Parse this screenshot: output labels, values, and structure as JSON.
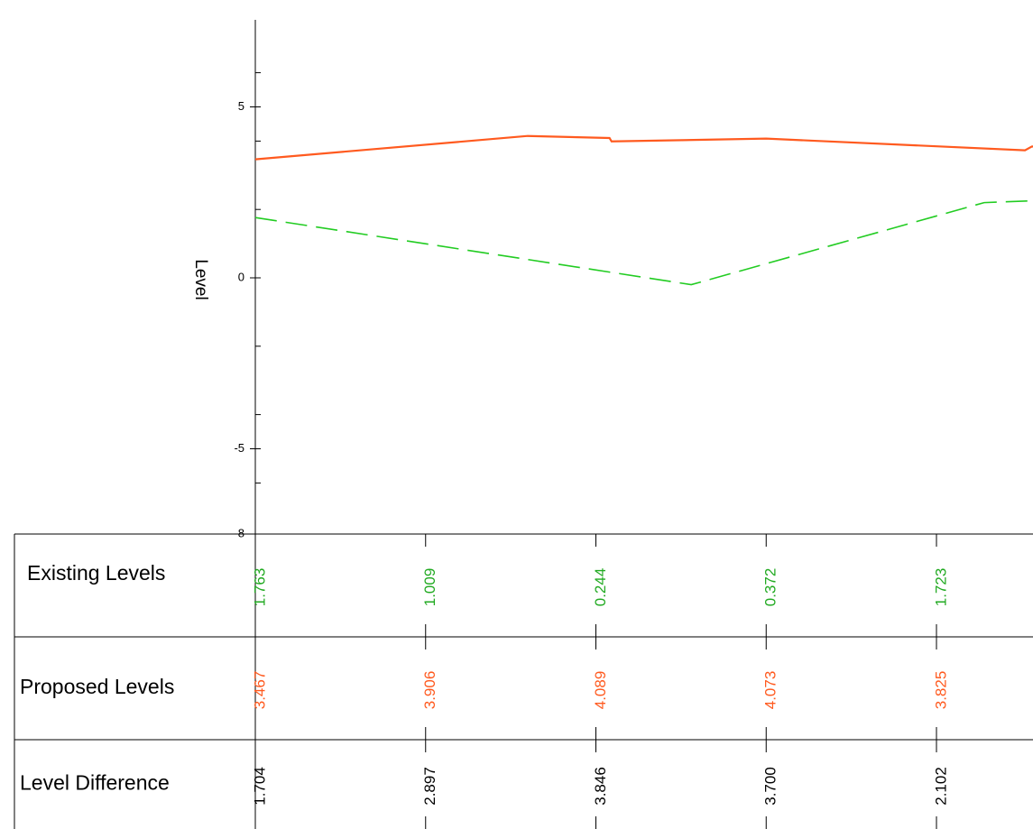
{
  "chart_data": {
    "type": "line",
    "ylabel": "Level",
    "ylim": [
      -8,
      7.5
    ],
    "y_ticks": [
      {
        "value": 5,
        "label": "5"
      },
      {
        "value": 0,
        "label": "0"
      },
      {
        "value": -5,
        "label": "-5"
      },
      {
        "value": -8,
        "label": "-8"
      }
    ],
    "series": [
      {
        "name": "Proposed Levels",
        "style": "solid",
        "color": "#ff5a1f",
        "points": [
          {
            "x": 0,
            "y": 3.467
          },
          {
            "x": 40,
            "y": 4.15
          },
          {
            "x": 52,
            "y": 4.09
          },
          {
            "x": 52.3,
            "y": 3.99
          },
          {
            "x": 75,
            "y": 4.073
          },
          {
            "x": 113,
            "y": 3.73
          },
          {
            "x": 114,
            "y": 3.84
          },
          {
            "x": 120,
            "y": 3.9
          }
        ]
      },
      {
        "name": "Existing Levels",
        "style": "dashed",
        "color": "#22cc22",
        "points": [
          {
            "x": 0,
            "y": 1.763
          },
          {
            "x": 64,
            "y": -0.2
          },
          {
            "x": 107,
            "y": 2.2
          },
          {
            "x": 120,
            "y": 2.3
          }
        ]
      }
    ],
    "table": {
      "columns_x": [
        0,
        25,
        50,
        75,
        100
      ],
      "rows": [
        {
          "label": "Existing Levels",
          "color": "#22aa22",
          "values": [
            "1.763",
            "1.009",
            "0.244",
            "0.372",
            "1.723"
          ]
        },
        {
          "label": "Proposed Levels",
          "color": "#ff5a1f",
          "values": [
            "3.467",
            "3.906",
            "4.089",
            "4.073",
            "3.825"
          ]
        },
        {
          "label": "Level Difference",
          "color": "#000000",
          "values": [
            "1.704",
            "2.897",
            "3.846",
            "3.700",
            "2.102"
          ]
        }
      ]
    }
  }
}
